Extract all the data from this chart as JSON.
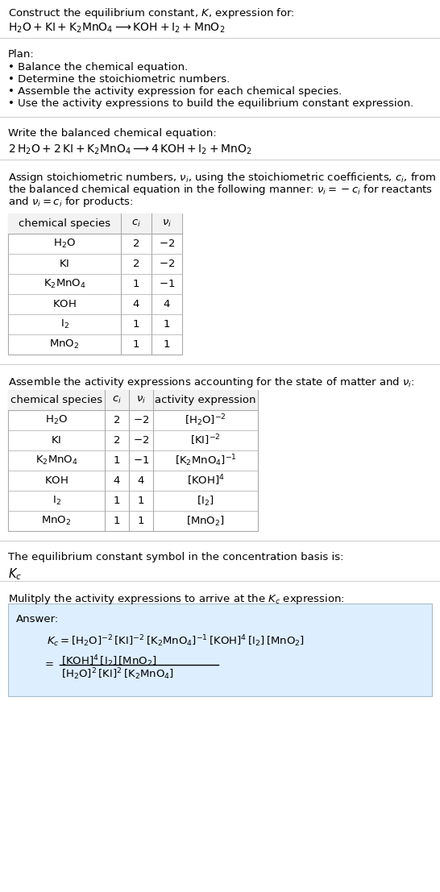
{
  "title_line1": "Construct the equilibrium constant, $K$, expression for:",
  "title_line2": "$\\mathrm{H_2O + KI + K_2MnO_4 \\longrightarrow KOH + I_2 + MnO_2}$",
  "plan_header": "Plan:",
  "plan_items": [
    "• Balance the chemical equation.",
    "• Determine the stoichiometric numbers.",
    "• Assemble the activity expression for each chemical species.",
    "• Use the activity expressions to build the equilibrium constant expression."
  ],
  "balanced_header": "Write the balanced chemical equation:",
  "balanced_eq": "$\\mathrm{2\\,H_2O + 2\\,KI + K_2MnO_4 \\longrightarrow 4\\,KOH + I_2 + MnO_2}$",
  "stoich_header_lines": [
    "Assign stoichiometric numbers, $\\nu_i$, using the stoichiometric coefficients, $c_i$, from",
    "the balanced chemical equation in the following manner: $\\nu_i = -c_i$ for reactants",
    "and $\\nu_i = c_i$ for products:"
  ],
  "table1_headers": [
    "chemical species",
    "$c_i$",
    "$\\nu_i$"
  ],
  "table1_rows": [
    [
      "$\\mathrm{H_2O}$",
      "2",
      "$-2$"
    ],
    [
      "$\\mathrm{KI}$",
      "2",
      "$-2$"
    ],
    [
      "$\\mathrm{K_2MnO_4}$",
      "1",
      "$-1$"
    ],
    [
      "$\\mathrm{KOH}$",
      "4",
      "$4$"
    ],
    [
      "$\\mathrm{I_2}$",
      "1",
      "$1$"
    ],
    [
      "$\\mathrm{MnO_2}$",
      "1",
      "$1$"
    ]
  ],
  "activity_header": "Assemble the activity expressions accounting for the state of matter and $\\nu_i$:",
  "table2_headers": [
    "chemical species",
    "$c_i$",
    "$\\nu_i$",
    "activity expression"
  ],
  "table2_rows": [
    [
      "$\\mathrm{H_2O}$",
      "2",
      "$-2$",
      "$[\\mathrm{H_2O}]^{-2}$"
    ],
    [
      "$\\mathrm{KI}$",
      "2",
      "$-2$",
      "$[\\mathrm{KI}]^{-2}$"
    ],
    [
      "$\\mathrm{K_2MnO_4}$",
      "1",
      "$-1$",
      "$[\\mathrm{K_2MnO_4}]^{-1}$"
    ],
    [
      "$\\mathrm{KOH}$",
      "4",
      "$4$",
      "$[\\mathrm{KOH}]^{4}$"
    ],
    [
      "$\\mathrm{I_2}$",
      "1",
      "$1$",
      "$[\\mathrm{I_2}]$"
    ],
    [
      "$\\mathrm{MnO_2}$",
      "1",
      "$1$",
      "$[\\mathrm{MnO_2}]$"
    ]
  ],
  "kc_symbol_header": "The equilibrium constant symbol in the concentration basis is:",
  "kc_symbol": "$K_c$",
  "multiply_header": "Mulitply the activity expressions to arrive at the $K_c$ expression:",
  "answer_label": "Answer:",
  "kc_line1": "$K_c = [\\mathrm{H_2O}]^{-2}\\,[\\mathrm{KI}]^{-2}\\,[\\mathrm{K_2MnO_4}]^{-1}\\,[\\mathrm{KOH}]^{4}\\,[\\mathrm{I_2}]\\,[\\mathrm{MnO_2}]$",
  "kc_line2_num": "$[\\mathrm{KOH}]^{4}\\,[\\mathrm{I_2}]\\,[\\mathrm{MnO_2}]$",
  "kc_line2_den": "$[\\mathrm{H_2O}]^{2}\\,[\\mathrm{KI}]^{2}\\,[\\mathrm{K_2MnO_4}]$",
  "bg_color": "#ffffff",
  "text_color": "#000000",
  "table_border_color": "#aaaaaa",
  "answer_bg_color": "#ddeeff",
  "answer_border_color": "#aabbcc",
  "separator_color": "#cccccc",
  "font_size": 9.5,
  "table_font_size": 9.5
}
